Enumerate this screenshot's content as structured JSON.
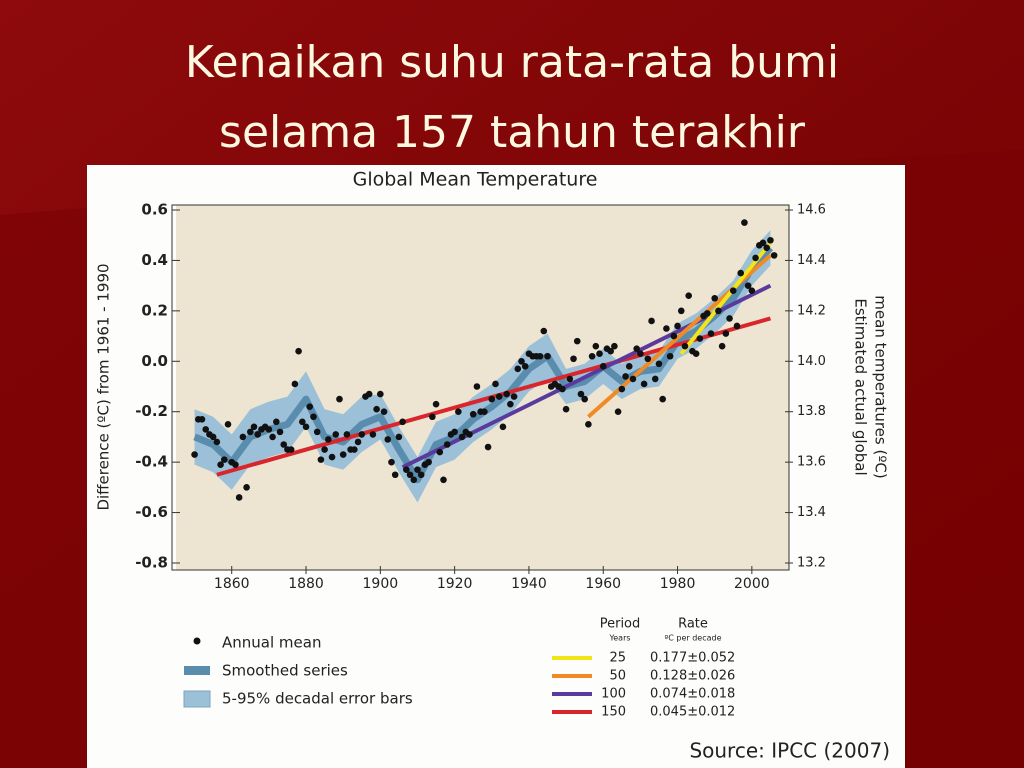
{
  "slide": {
    "title": [
      "Kenaikan suhu rata-rata bumi",
      "selama 157 tahun terakhir"
    ]
  },
  "chart_data": {
    "type": "combo",
    "title": "Global Mean Temperature",
    "ylabel": "Difference (ºC) from 1961 - 1990",
    "y2label": [
      "Estimated actual global",
      "mean temperatures (ºC)"
    ],
    "source": "Source: IPCC (2007)",
    "xlim": [
      1845,
      2010
    ],
    "xticks": [
      1860,
      1880,
      1900,
      1920,
      1940,
      1960,
      1980,
      2000
    ],
    "ylim": [
      -0.8,
      0.6
    ],
    "yticks": [
      0.6,
      0.4,
      0.2,
      {
        "value": 0,
        "label": "0.0"
      },
      -0.2,
      -0.4,
      -0.6,
      -0.8
    ],
    "y2lim": [
      13.2,
      14.6
    ],
    "y2ticks": [
      14.6,
      14.4,
      14.2,
      {
        "value": 14,
        "label": "14.0"
      },
      13.8,
      13.6,
      13.4,
      13.2
    ],
    "trend_legend": {
      "headers": [
        "Period",
        "Rate"
      ],
      "units": [
        "Years",
        "ºC per decade"
      ]
    },
    "series": [
      {
        "name": "Annual mean",
        "type": "scatter",
        "color": "#111111",
        "x": [
          1850,
          1851,
          1852,
          1853,
          1854,
          1855,
          1856,
          1857,
          1858,
          1859,
          1860,
          1861,
          1862,
          1863,
          1864,
          1865,
          1866,
          1867,
          1868,
          1869,
          1870,
          1871,
          1872,
          1873,
          1874,
          1875,
          1876,
          1877,
          1878,
          1879,
          1880,
          1881,
          1882,
          1883,
          1884,
          1885,
          1886,
          1887,
          1888,
          1889,
          1890,
          1891,
          1892,
          1893,
          1894,
          1895,
          1896,
          1897,
          1898,
          1899,
          1900,
          1901,
          1902,
          1903,
          1904,
          1905,
          1906,
          1907,
          1908,
          1909,
          1910,
          1911,
          1912,
          1913,
          1914,
          1915,
          1916,
          1917,
          1918,
          1919,
          1920,
          1921,
          1922,
          1923,
          1924,
          1925,
          1926,
          1927,
          1928,
          1929,
          1930,
          1931,
          1932,
          1933,
          1934,
          1935,
          1936,
          1937,
          1938,
          1939,
          1940,
          1941,
          1942,
          1943,
          1944,
          1945,
          1946,
          1947,
          1948,
          1949,
          1950,
          1951,
          1952,
          1953,
          1954,
          1955,
          1956,
          1957,
          1958,
          1959,
          1960,
          1961,
          1962,
          1963,
          1964,
          1965,
          1966,
          1967,
          1968,
          1969,
          1970,
          1971,
          1972,
          1973,
          1974,
          1975,
          1976,
          1977,
          1978,
          1979,
          1980,
          1981,
          1982,
          1983,
          1984,
          1985,
          1986,
          1987,
          1988,
          1989,
          1990,
          1991,
          1992,
          1993,
          1994,
          1995,
          1996,
          1997,
          1998,
          1999,
          2000,
          2001,
          2002,
          2003,
          2004,
          2005,
          2006
        ],
        "values": [
          -0.37,
          -0.23,
          -0.23,
          -0.27,
          -0.29,
          -0.3,
          -0.32,
          -0.41,
          -0.39,
          -0.25,
          -0.4,
          -0.41,
          -0.54,
          -0.3,
          -0.5,
          -0.28,
          -0.26,
          -0.29,
          -0.27,
          -0.26,
          -0.27,
          -0.3,
          -0.24,
          -0.28,
          -0.33,
          -0.35,
          -0.35,
          -0.09,
          0.04,
          -0.24,
          -0.26,
          -0.18,
          -0.22,
          -0.28,
          -0.39,
          -0.35,
          -0.31,
          -0.38,
          -0.29,
          -0.15,
          -0.37,
          -0.29,
          -0.35,
          -0.35,
          -0.32,
          -0.29,
          -0.14,
          -0.13,
          -0.29,
          -0.19,
          -0.13,
          -0.2,
          -0.31,
          -0.4,
          -0.45,
          -0.3,
          -0.24,
          -0.43,
          -0.45,
          -0.47,
          -0.43,
          -0.45,
          -0.41,
          -0.4,
          -0.22,
          -0.17,
          -0.36,
          -0.47,
          -0.33,
          -0.29,
          -0.28,
          -0.2,
          -0.3,
          -0.28,
          -0.29,
          -0.21,
          -0.1,
          -0.2,
          -0.2,
          -0.34,
          -0.15,
          -0.09,
          -0.14,
          -0.26,
          -0.13,
          -0.17,
          -0.14,
          -0.03,
          0.0,
          -0.02,
          0.03,
          0.02,
          0.02,
          0.02,
          0.12,
          0.02,
          -0.1,
          -0.09,
          -0.1,
          -0.11,
          -0.19,
          -0.07,
          0.01,
          0.08,
          -0.13,
          -0.15,
          -0.25,
          0.02,
          0.06,
          0.03,
          -0.02,
          0.05,
          0.04,
          0.06,
          -0.2,
          -0.11,
          -0.06,
          -0.02,
          -0.07,
          0.05,
          0.03,
          -0.09,
          0.01,
          0.16,
          -0.07,
          -0.01,
          -0.15,
          0.13,
          0.02,
          0.1,
          0.14,
          0.2,
          0.06,
          0.26,
          0.04,
          0.03,
          0.09,
          0.18,
          0.19,
          0.11,
          0.25,
          0.2,
          0.06,
          0.11,
          0.17,
          0.28,
          0.14,
          0.35,
          0.55,
          0.3,
          0.28,
          0.41,
          0.46,
          0.47,
          0.45,
          0.48,
          0.42
        ]
      },
      {
        "name": "5-95% decadal error bars",
        "type": "band",
        "color": "#9cc0d8",
        "x": [
          1850,
          1855,
          1860,
          1865,
          1870,
          1875,
          1880,
          1885,
          1890,
          1895,
          1900,
          1905,
          1910,
          1915,
          1920,
          1925,
          1930,
          1935,
          1940,
          1945,
          1950,
          1955,
          1960,
          1965,
          1970,
          1975,
          1980,
          1985,
          1990,
          1995,
          2000,
          2005
        ],
        "upper": [
          -0.19,
          -0.22,
          -0.29,
          -0.19,
          -0.16,
          -0.14,
          -0.04,
          -0.19,
          -0.21,
          -0.14,
          -0.13,
          -0.26,
          -0.38,
          -0.24,
          -0.21,
          -0.14,
          -0.09,
          -0.03,
          0.06,
          0.11,
          -0.03,
          -0.01,
          0.05,
          -0.01,
          0.03,
          0.04,
          0.15,
          0.19,
          0.25,
          0.32,
          0.44,
          0.52
        ],
        "lower": [
          -0.41,
          -0.44,
          -0.51,
          -0.41,
          -0.38,
          -0.36,
          -0.26,
          -0.41,
          -0.43,
          -0.36,
          -0.31,
          -0.44,
          -0.56,
          -0.42,
          -0.39,
          -0.32,
          -0.27,
          -0.21,
          -0.12,
          -0.07,
          -0.17,
          -0.15,
          -0.09,
          -0.15,
          -0.11,
          -0.1,
          0.01,
          0.05,
          0.11,
          0.18,
          0.3,
          0.38
        ]
      },
      {
        "name": "Smoothed series",
        "type": "line",
        "color": "#5a8cae",
        "x": [
          1850,
          1855,
          1860,
          1865,
          1870,
          1875,
          1880,
          1885,
          1890,
          1895,
          1900,
          1905,
          1910,
          1915,
          1920,
          1925,
          1930,
          1935,
          1940,
          1945,
          1950,
          1955,
          1960,
          1965,
          1970,
          1975,
          1980,
          1985,
          1990,
          1995,
          2000,
          2005
        ],
        "values": [
          -0.3,
          -0.33,
          -0.4,
          -0.3,
          -0.27,
          -0.25,
          -0.15,
          -0.3,
          -0.32,
          -0.25,
          -0.22,
          -0.35,
          -0.47,
          -0.33,
          -0.3,
          -0.23,
          -0.18,
          -0.12,
          -0.03,
          0.02,
          -0.1,
          -0.08,
          -0.02,
          -0.08,
          -0.04,
          -0.03,
          0.08,
          0.12,
          0.18,
          0.25,
          0.37,
          0.45
        ]
      },
      {
        "name": "150",
        "type": "trend",
        "color": "#d8262c",
        "rate": "0.045±0.012",
        "x": [
          1856,
          2005
        ],
        "values": [
          -0.45,
          0.17
        ]
      },
      {
        "name": "100",
        "type": "trend",
        "color": "#5a3a9c",
        "rate": "0.074±0.018",
        "x": [
          1906,
          2005
        ],
        "values": [
          -0.42,
          0.3
        ]
      },
      {
        "name": "50",
        "type": "trend",
        "color": "#f08a24",
        "rate": "0.128±0.026",
        "x": [
          1956,
          2005
        ],
        "values": [
          -0.22,
          0.42
        ]
      },
      {
        "name": "25",
        "type": "trend",
        "color": "#f3e418",
        "rate": "0.177±0.052",
        "x": [
          1981,
          2005
        ],
        "values": [
          0.03,
          0.47
        ]
      }
    ]
  }
}
